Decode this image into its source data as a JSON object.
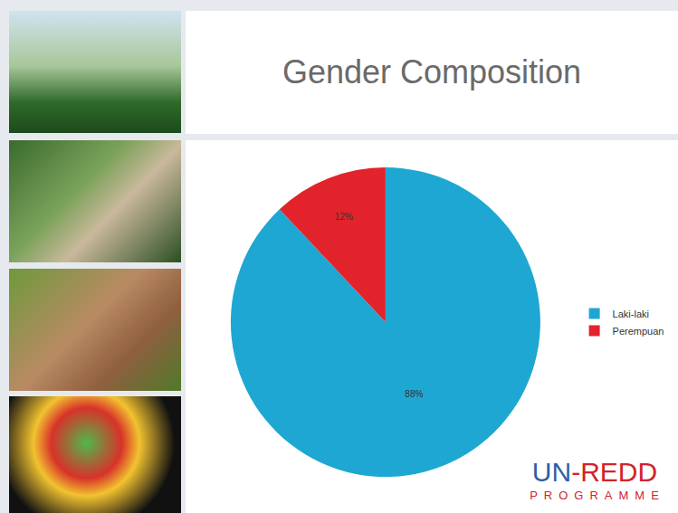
{
  "chart_data": {
    "type": "pie",
    "title": "Gender Composition",
    "categories": [
      "Laki-laki",
      "Perempuan"
    ],
    "values": [
      88,
      12
    ],
    "value_labels": [
      "88%",
      "12%"
    ],
    "colors": [
      "#1ea7d2",
      "#e2232b"
    ],
    "data_labels": true,
    "legend": "right"
  },
  "logo": {
    "name": "UN-REDD",
    "subtitle": "PROGRAMME"
  }
}
